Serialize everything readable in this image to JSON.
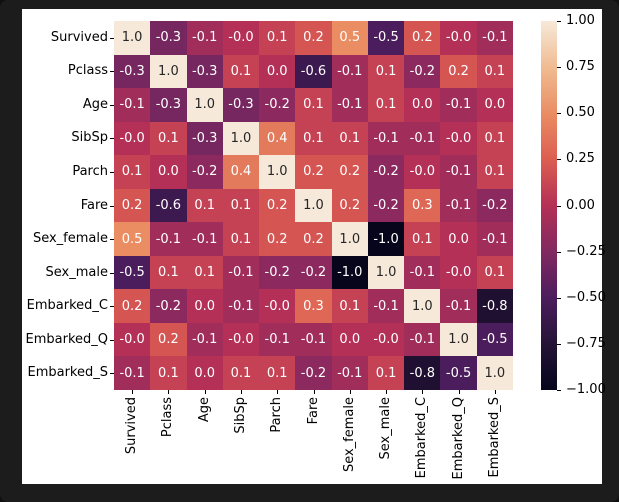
{
  "colors": {
    "page_background": "#1c1c1c",
    "figure_background": "#ffffff",
    "axis_text": "#000000",
    "annotation_light": "#ffffff",
    "annotation_dark": "#262626"
  },
  "chart_data": {
    "type": "heatmap",
    "title": "",
    "xlabel": "",
    "ylabel": "",
    "grid": false,
    "legend_position": "colorbar-right",
    "categories": [
      "Survived",
      "Pclass",
      "Age",
      "SibSp",
      "Parch",
      "Fare",
      "Sex_female",
      "Sex_male",
      "Embarked_C",
      "Embarked_Q",
      "Embarked_S"
    ],
    "matrix": [
      [
        "1.0",
        "-0.3",
        "-0.1",
        "-0.0",
        "0.1",
        "0.2",
        "0.5",
        "-0.5",
        "0.2",
        "-0.0",
        "-0.1"
      ],
      [
        "-0.3",
        "1.0",
        "-0.3",
        "0.1",
        "0.0",
        "-0.6",
        "-0.1",
        "0.1",
        "-0.2",
        "0.2",
        "0.1"
      ],
      [
        "-0.1",
        "-0.3",
        "1.0",
        "-0.3",
        "-0.2",
        "0.1",
        "-0.1",
        "0.1",
        "0.0",
        "-0.1",
        "0.0"
      ],
      [
        "-0.0",
        "0.1",
        "-0.3",
        "1.0",
        "0.4",
        "0.1",
        "0.1",
        "-0.1",
        "-0.1",
        "-0.0",
        "0.1"
      ],
      [
        "0.1",
        "0.0",
        "-0.2",
        "0.4",
        "1.0",
        "0.2",
        "0.2",
        "-0.2",
        "-0.0",
        "-0.1",
        "0.1"
      ],
      [
        "0.2",
        "-0.6",
        "0.1",
        "0.1",
        "0.2",
        "1.0",
        "0.2",
        "-0.2",
        "0.3",
        "-0.1",
        "-0.2"
      ],
      [
        "0.5",
        "-0.1",
        "-0.1",
        "0.1",
        "0.2",
        "0.2",
        "1.0",
        "-1.0",
        "0.1",
        "0.0",
        "-0.1"
      ],
      [
        "-0.5",
        "0.1",
        "0.1",
        "-0.1",
        "-0.2",
        "-0.2",
        "-1.0",
        "1.0",
        "-0.1",
        "-0.0",
        "0.1"
      ],
      [
        "0.2",
        "-0.2",
        "0.0",
        "-0.1",
        "-0.0",
        "0.3",
        "0.1",
        "-0.1",
        "1.0",
        "-0.1",
        "-0.8"
      ],
      [
        "-0.0",
        "0.2",
        "-0.1",
        "-0.0",
        "-0.1",
        "-0.1",
        "0.0",
        "-0.0",
        "-0.1",
        "1.0",
        "-0.5"
      ],
      [
        "-0.1",
        "0.1",
        "0.0",
        "0.1",
        "0.1",
        "-0.2",
        "-0.1",
        "0.1",
        "-0.8",
        "-0.5",
        "1.0"
      ]
    ],
    "value_range": [
      -1,
      1
    ],
    "colorbar": {
      "tick_labels": [
        "1.00",
        "0.75",
        "0.50",
        "0.25",
        "0.00",
        "−0.25",
        "−0.50",
        "−0.75",
        "−1.00"
      ],
      "tick_values": [
        1.0,
        0.75,
        0.5,
        0.25,
        0.0,
        -0.25,
        -0.5,
        -0.75,
        -1.0
      ]
    },
    "colormap": {
      "name": "rocket",
      "anchors": [
        {
          "v": 1.0,
          "color": "#F6E9D9"
        },
        {
          "v": 0.75,
          "color": "#F0BC92"
        },
        {
          "v": 0.5,
          "color": "#EA8D63"
        },
        {
          "v": 0.25,
          "color": "#DC5E51"
        },
        {
          "v": 0.0,
          "color": "#B43056"
        },
        {
          "v": -0.25,
          "color": "#822961"
        },
        {
          "v": -0.5,
          "color": "#4C1D5D"
        },
        {
          "v": -0.75,
          "color": "#251337"
        },
        {
          "v": -1.0,
          "color": "#06051C"
        }
      ]
    }
  }
}
